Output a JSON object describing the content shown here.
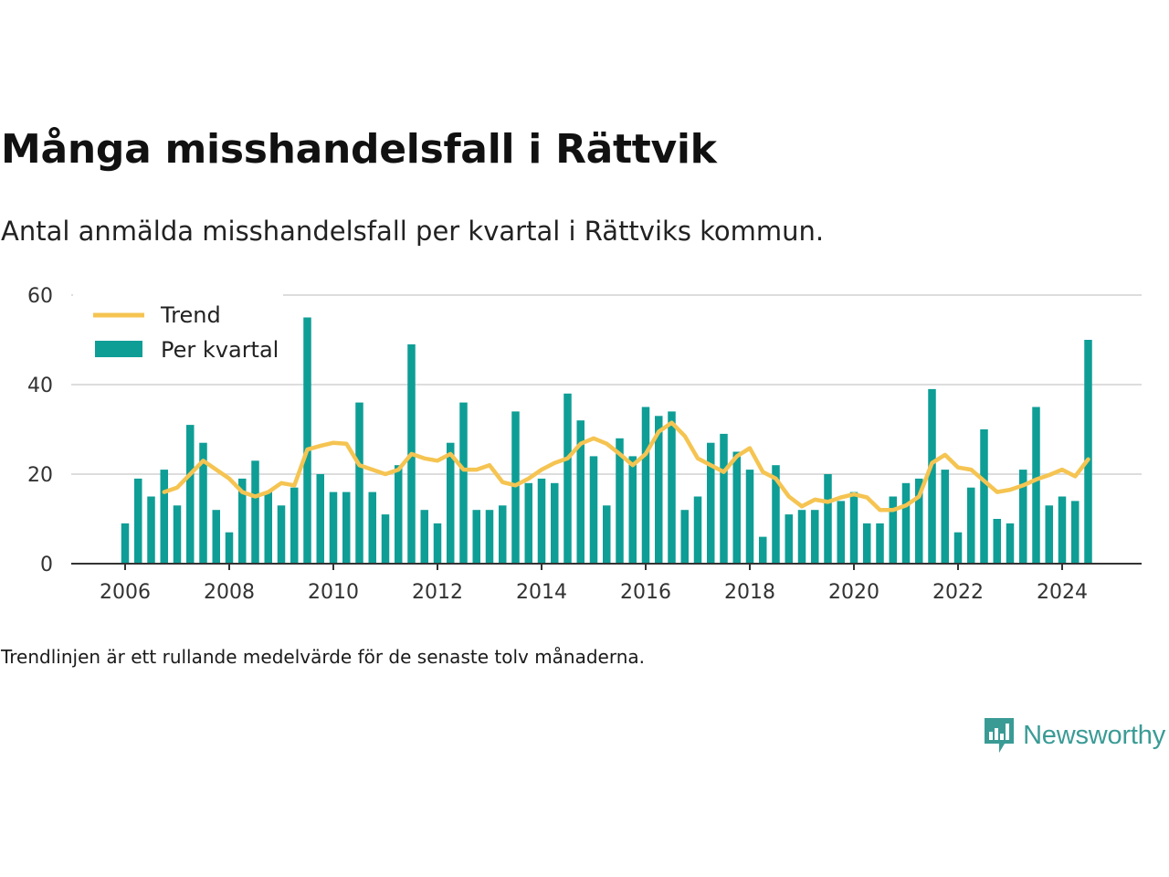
{
  "title": "Många misshandelsfall i Rättvik",
  "subtitle": "Antal anmälda misshandelsfall per kvartal i Rättviks kommun.",
  "footnote": "Trendlinjen är ett rullande medelvärde för de senaste tolv månaderna.",
  "brand": {
    "name": "Newsworthy",
    "icon": "newsworthy-logo-icon"
  },
  "colors": {
    "bar": "#0e9e96",
    "trend": "#f5c451",
    "grid": "#dddddd",
    "axis": "#333333",
    "brand": "#3a9b95"
  },
  "chart_data": {
    "type": "bar",
    "x_start_year": 2006,
    "quarters_per_year": 4,
    "ylim": [
      0,
      60
    ],
    "yticks": [
      0,
      20,
      40,
      60
    ],
    "xticks": [
      2006,
      2008,
      2010,
      2012,
      2014,
      2016,
      2018,
      2020,
      2022,
      2024
    ],
    "xlabel": "",
    "ylabel": "",
    "grid": true,
    "legend_position": "top-left",
    "series": [
      {
        "name": "Per kvartal",
        "kind": "bar",
        "values": [
          9,
          19,
          15,
          21,
          13,
          31,
          27,
          12,
          7,
          19,
          23,
          16,
          13,
          17,
          55,
          20,
          16,
          16,
          36,
          16,
          11,
          22,
          49,
          12,
          9,
          27,
          36,
          12,
          12,
          13,
          34,
          18,
          19,
          18,
          38,
          32,
          24,
          13,
          28,
          24,
          35,
          33,
          34,
          12,
          15,
          27,
          29,
          25,
          21,
          6,
          22,
          11,
          12,
          12,
          20,
          14,
          16,
          9,
          9,
          15,
          18,
          19,
          39,
          21,
          7,
          17,
          30,
          10,
          9,
          21,
          35,
          13,
          15,
          14,
          50
        ]
      },
      {
        "name": "Trend",
        "kind": "line",
        "start_index": 3,
        "values": [
          16,
          17,
          20,
          23,
          21,
          19,
          16,
          15,
          16,
          18,
          17.5,
          25.5,
          26.3,
          27,
          26.8,
          22,
          21,
          20,
          21,
          24.5,
          23.5,
          23,
          24.5,
          21,
          21,
          22,
          18.2,
          17.5,
          19,
          21,
          22.5,
          23.5,
          26.8,
          28,
          26.8,
          24.5,
          22,
          24.5,
          29.5,
          31.5,
          28.5,
          23.5,
          22,
          20.5,
          24,
          25.8,
          20.5,
          19,
          15,
          12.8,
          14.3,
          13.8,
          14.8,
          15.5,
          14.8,
          12,
          12,
          13,
          15,
          22.5,
          24.3,
          21.5,
          21,
          18.5,
          16,
          16.5,
          17.5,
          18.8,
          19.8,
          21,
          19.5,
          23.3
        ]
      }
    ]
  }
}
